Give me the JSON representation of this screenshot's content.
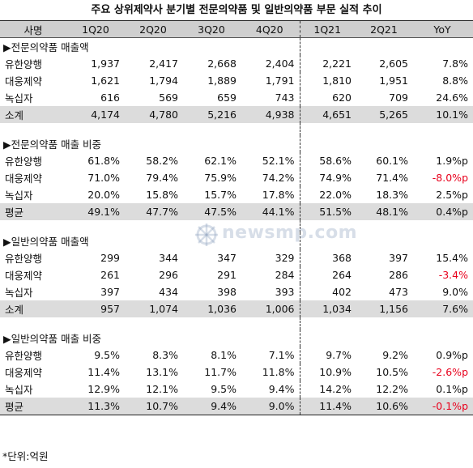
{
  "title": "주요 상위제약사 분기별 전문의약품 및 일반의약품 부문 실적 추이",
  "header": [
    "사명",
    "1Q20",
    "2Q20",
    "3Q20",
    "4Q20",
    "1Q21",
    "2Q21",
    "YoY"
  ],
  "sections": [
    {
      "title": "▶전문의약품 매출액",
      "rows": [
        {
          "name": "유한양행",
          "values": [
            "1,937",
            "2,417",
            "2,668",
            "2,404",
            "2,221",
            "2,605",
            "7.8%"
          ],
          "negative": false
        },
        {
          "name": "대웅제약",
          "values": [
            "1,621",
            "1,794",
            "1,889",
            "1,791",
            "1,810",
            "1,951",
            "8.8%"
          ],
          "negative": false
        },
        {
          "name": "녹십자",
          "values": [
            "616",
            "569",
            "659",
            "743",
            "620",
            "709",
            "24.6%"
          ],
          "negative": false
        }
      ],
      "summary": {
        "name": "소계",
        "values": [
          "4,174",
          "4,780",
          "5,216",
          "4,938",
          "4,651",
          "5,265",
          "10.1%"
        ],
        "negative": false
      }
    },
    {
      "title": "▶전문의약품 매출 비중",
      "rows": [
        {
          "name": "유한양행",
          "values": [
            "61.8%",
            "58.2%",
            "62.1%",
            "52.1%",
            "58.6%",
            "60.1%",
            "1.9%p"
          ],
          "negative": false
        },
        {
          "name": "대웅제약",
          "values": [
            "71.0%",
            "79.4%",
            "75.9%",
            "74.2%",
            "74.9%",
            "71.4%",
            "-8.0%p"
          ],
          "negative": true
        },
        {
          "name": "녹십자",
          "values": [
            "20.0%",
            "15.8%",
            "15.7%",
            "17.8%",
            "22.0%",
            "18.3%",
            "2.5%p"
          ],
          "negative": false
        }
      ],
      "summary": {
        "name": "평균",
        "values": [
          "49.1%",
          "47.7%",
          "47.5%",
          "44.1%",
          "51.5%",
          "48.1%",
          "0.4%p"
        ],
        "negative": false
      }
    },
    {
      "title": "▶일반의약품 매출액",
      "rows": [
        {
          "name": "유한양행",
          "values": [
            "299",
            "344",
            "347",
            "329",
            "368",
            "397",
            "15.4%"
          ],
          "negative": false
        },
        {
          "name": "대웅제약",
          "values": [
            "261",
            "296",
            "291",
            "284",
            "264",
            "286",
            "-3.4%"
          ],
          "negative": true
        },
        {
          "name": "녹십자",
          "values": [
            "397",
            "434",
            "398",
            "393",
            "402",
            "473",
            "9.0%"
          ],
          "negative": false
        }
      ],
      "summary": {
        "name": "소계",
        "values": [
          "957",
          "1,074",
          "1,036",
          "1,006",
          "1,034",
          "1,156",
          "7.6%"
        ],
        "negative": false
      }
    },
    {
      "title": "▶일반의약품 매출 비중",
      "rows": [
        {
          "name": "유한양행",
          "values": [
            "9.5%",
            "8.3%",
            "8.1%",
            "7.1%",
            "9.7%",
            "9.2%",
            "0.9%p"
          ],
          "negative": false
        },
        {
          "name": "대웅제약",
          "values": [
            "11.4%",
            "13.1%",
            "11.7%",
            "11.8%",
            "10.9%",
            "10.5%",
            "-2.6%p"
          ],
          "negative": true
        },
        {
          "name": "녹십자",
          "values": [
            "12.9%",
            "12.1%",
            "9.5%",
            "9.4%",
            "14.2%",
            "12.2%",
            "0.1%p"
          ],
          "negative": false
        }
      ],
      "summary": {
        "name": "평균",
        "values": [
          "11.3%",
          "10.7%",
          "9.4%",
          "9.0%",
          "11.4%",
          "10.6%",
          "-0.1%p"
        ],
        "negative": true
      }
    }
  ],
  "footnote": "*단위:억원",
  "watermark": "newsmp.com",
  "colors": {
    "header_bg": "#cfcfcf",
    "summary_bg": "#dcdcdc",
    "negative": "#e8001c"
  }
}
